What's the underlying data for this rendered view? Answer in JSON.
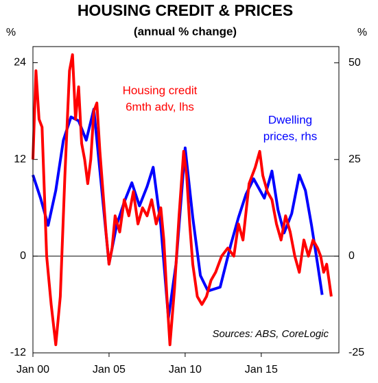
{
  "chart_data": {
    "type": "line",
    "title": "HOUSING CREDIT & PRICES",
    "subtitle": "(annual % change)",
    "ylabel": "%",
    "y2label": "%",
    "source": "Sources: ABS, CoreLogic",
    "xlim": [
      2000,
      2020.1
    ],
    "xticks": [
      {
        "value": 2000,
        "label": "Jan 00"
      },
      {
        "value": 2005,
        "label": "Jan 05"
      },
      {
        "value": 2010,
        "label": "Jan 10"
      },
      {
        "value": 2015,
        "label": "Jan 15"
      }
    ],
    "ylim": [
      -12,
      26
    ],
    "yticks": [
      -12,
      0,
      12,
      24
    ],
    "y2lim": [
      -25,
      54.2
    ],
    "y2ticks": [
      -25,
      0,
      25,
      50
    ],
    "series": [
      {
        "name": [
          "Dwelling",
          "prices, rhs"
        ],
        "color": "#0000ff",
        "axis": "y2",
        "x": [
          2000.0,
          2000.5,
          2001.0,
          2001.5,
          2002.0,
          2002.5,
          2003.0,
          2003.5,
          2004.0,
          2004.5,
          2005.0,
          2005.5,
          2006.0,
          2006.5,
          2007.0,
          2007.5,
          2007.9,
          2008.4,
          2008.9,
          2009.4,
          2010.0,
          2010.5,
          2011.0,
          2011.5,
          2012.3,
          2013.0,
          2013.5,
          2014.0,
          2014.5,
          2015.2,
          2015.7,
          2016.1,
          2016.5,
          2017.0,
          2017.5,
          2017.9,
          2018.3,
          2018.7,
          2019.0
        ],
        "values": [
          21,
          15,
          8,
          17,
          30,
          36,
          35,
          30,
          38,
          18,
          -2,
          8,
          14,
          19,
          13,
          18,
          23,
          8,
          -16,
          -2,
          28,
          10,
          -5,
          -9,
          -8,
          3,
          10,
          16,
          20,
          15,
          22,
          12,
          6,
          11,
          21,
          17,
          8,
          -2,
          -10
        ]
      },
      {
        "name": [
          "Housing credit",
          "6mth adv, lhs"
        ],
        "color": "#ff0000",
        "axis": "y",
        "x": [
          2000.0,
          2000.2,
          2000.4,
          2000.6,
          2000.9,
          2001.2,
          2001.5,
          2001.8,
          2002.1,
          2002.4,
          2002.6,
          2002.8,
          2003.0,
          2003.2,
          2003.4,
          2003.6,
          2003.8,
          2004.0,
          2004.2,
          2004.4,
          2004.6,
          2004.8,
          2005.0,
          2005.2,
          2005.4,
          2005.7,
          2006.0,
          2006.3,
          2006.6,
          2006.9,
          2007.2,
          2007.5,
          2007.8,
          2008.1,
          2008.4,
          2008.6,
          2008.8,
          2009.0,
          2009.3,
          2009.6,
          2009.9,
          2010.1,
          2010.3,
          2010.5,
          2010.8,
          2011.1,
          2011.4,
          2011.7,
          2012.0,
          2012.4,
          2012.8,
          2013.2,
          2013.5,
          2013.8,
          2014.2,
          2014.6,
          2014.9,
          2015.1,
          2015.4,
          2015.7,
          2016.0,
          2016.3,
          2016.6,
          2016.9,
          2017.2,
          2017.5,
          2017.8,
          2018.1,
          2018.4,
          2018.7,
          2018.9,
          2019.1,
          2019.3,
          2019.45,
          2019.6
        ],
        "values": [
          12,
          23,
          17,
          16,
          0,
          -6,
          -11,
          -5,
          10,
          23,
          25,
          17,
          21,
          14,
          12,
          9,
          12,
          18,
          19,
          13,
          8,
          3,
          -1,
          1,
          5,
          3,
          7,
          5,
          8,
          4,
          6,
          5,
          7,
          4,
          6,
          2,
          -5,
          -11,
          -4,
          5,
          13,
          10,
          4,
          -1,
          -5,
          -6,
          -5,
          -3,
          -2,
          0,
          1,
          0,
          4,
          2,
          9,
          11,
          13,
          10,
          8,
          7,
          4,
          2,
          5,
          3,
          0,
          -2,
          2,
          0,
          2,
          1,
          0,
          -2,
          -1,
          -3,
          -5
        ]
      }
    ]
  }
}
